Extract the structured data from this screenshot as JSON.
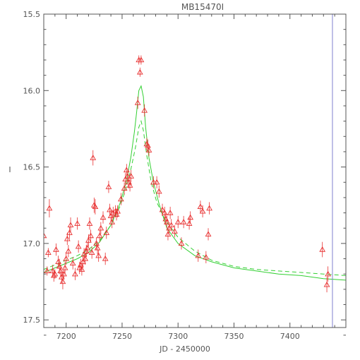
{
  "chart_data": {
    "type": "scatter",
    "title": "MB15470I",
    "xlabel": "JD - 2450000",
    "ylabel": "I",
    "xlim": [
      7180,
      7450
    ],
    "ylim": [
      17.55,
      15.5
    ],
    "y_inverted": true,
    "grid": false,
    "xticks": [
      7200,
      7250,
      7300,
      7350,
      7400
    ],
    "yticks": [
      15.5,
      16.0,
      16.5,
      17.0,
      17.5
    ],
    "ytick_labels": [
      "15.5",
      "16.0",
      "16.5",
      "17.0",
      "17.5"
    ],
    "marker_vertical_line_x": 7438,
    "colors": {
      "points": "#e83030",
      "model_solid": "#33d033",
      "model_dashed": "#33d033",
      "frame": "#555555",
      "marker_line": "#8080d0"
    },
    "series": [
      {
        "kind": "points",
        "marker": "triangle",
        "points": [
          {
            "x": 7180,
            "y": 16.95,
            "err": 0.04
          },
          {
            "x": 7183,
            "y": 17.18,
            "err": 0.03
          },
          {
            "x": 7184,
            "y": 17.06,
            "err": 0.03
          },
          {
            "x": 7185,
            "y": 16.77,
            "err": 0.06
          },
          {
            "x": 7188,
            "y": 17.18,
            "err": 0.04
          },
          {
            "x": 7189,
            "y": 17.21,
            "err": 0.04
          },
          {
            "x": 7190,
            "y": 17.2,
            "err": 0.03
          },
          {
            "x": 7191,
            "y": 17.04,
            "err": 0.04
          },
          {
            "x": 7193,
            "y": 17.12,
            "err": 0.04
          },
          {
            "x": 7194,
            "y": 17.15,
            "err": 0.05
          },
          {
            "x": 7195,
            "y": 17.18,
            "err": 0.04
          },
          {
            "x": 7196,
            "y": 17.22,
            "err": 0.04
          },
          {
            "x": 7197,
            "y": 17.25,
            "err": 0.05
          },
          {
            "x": 7198,
            "y": 17.2,
            "err": 0.03
          },
          {
            "x": 7199,
            "y": 17.16,
            "err": 0.04
          },
          {
            "x": 7200,
            "y": 17.1,
            "err": 0.04
          },
          {
            "x": 7201,
            "y": 16.97,
            "err": 0.04
          },
          {
            "x": 7202,
            "y": 17.05,
            "err": 0.04
          },
          {
            "x": 7203,
            "y": 16.93,
            "err": 0.04
          },
          {
            "x": 7204,
            "y": 16.88,
            "err": 0.05
          },
          {
            "x": 7206,
            "y": 17.13,
            "err": 0.04
          },
          {
            "x": 7208,
            "y": 17.2,
            "err": 0.04
          },
          {
            "x": 7210,
            "y": 16.87,
            "err": 0.04
          },
          {
            "x": 7211,
            "y": 17.02,
            "err": 0.04
          },
          {
            "x": 7212,
            "y": 17.16,
            "err": 0.04
          },
          {
            "x": 7213,
            "y": 17.14,
            "err": 0.04
          },
          {
            "x": 7214,
            "y": 17.17,
            "err": 0.04
          },
          {
            "x": 7215,
            "y": 17.12,
            "err": 0.04
          },
          {
            "x": 7216,
            "y": 17.07,
            "err": 0.04
          },
          {
            "x": 7217,
            "y": 17.1,
            "err": 0.04
          },
          {
            "x": 7218,
            "y": 17.05,
            "err": 0.04
          },
          {
            "x": 7219,
            "y": 17.03,
            "err": 0.04
          },
          {
            "x": 7220,
            "y": 16.98,
            "err": 0.04
          },
          {
            "x": 7221,
            "y": 16.87,
            "err": 0.04
          },
          {
            "x": 7222,
            "y": 16.95,
            "err": 0.04
          },
          {
            "x": 7223,
            "y": 17.06,
            "err": 0.04
          },
          {
            "x": 7224,
            "y": 16.44,
            "err": 0.05
          },
          {
            "x": 7225,
            "y": 16.75,
            "err": 0.05
          },
          {
            "x": 7226,
            "y": 16.76,
            "err": 0.05
          },
          {
            "x": 7227,
            "y": 17.0,
            "err": 0.04
          },
          {
            "x": 7228,
            "y": 17.03,
            "err": 0.04
          },
          {
            "x": 7229,
            "y": 17.08,
            "err": 0.04
          },
          {
            "x": 7230,
            "y": 16.95,
            "err": 0.04
          },
          {
            "x": 7231,
            "y": 16.9,
            "err": 0.04
          },
          {
            "x": 7233,
            "y": 16.83,
            "err": 0.04
          },
          {
            "x": 7235,
            "y": 17.1,
            "err": 0.04
          },
          {
            "x": 7236,
            "y": 16.93,
            "err": 0.04
          },
          {
            "x": 7238,
            "y": 16.63,
            "err": 0.04
          },
          {
            "x": 7239,
            "y": 16.78,
            "err": 0.04
          },
          {
            "x": 7240,
            "y": 16.82,
            "err": 0.04
          },
          {
            "x": 7241,
            "y": 16.86,
            "err": 0.04
          },
          {
            "x": 7242,
            "y": 16.8,
            "err": 0.04
          },
          {
            "x": 7244,
            "y": 16.79,
            "err": 0.04
          },
          {
            "x": 7245,
            "y": 16.81,
            "err": 0.04
          },
          {
            "x": 7246,
            "y": 16.79,
            "err": 0.04
          },
          {
            "x": 7249,
            "y": 16.71,
            "err": 0.04
          },
          {
            "x": 7252,
            "y": 16.64,
            "err": 0.04
          },
          {
            "x": 7253,
            "y": 16.58,
            "err": 0.04
          },
          {
            "x": 7254,
            "y": 16.52,
            "err": 0.04
          },
          {
            "x": 7255,
            "y": 16.56,
            "err": 0.04
          },
          {
            "x": 7256,
            "y": 16.6,
            "err": 0.04
          },
          {
            "x": 7257,
            "y": 16.62,
            "err": 0.04
          },
          {
            "x": 7258,
            "y": 16.56,
            "err": 0.04
          },
          {
            "x": 7264,
            "y": 16.08,
            "err": 0.04
          },
          {
            "x": 7265,
            "y": 15.8,
            "err": 0.03
          },
          {
            "x": 7266,
            "y": 15.88,
            "err": 0.03
          },
          {
            "x": 7267,
            "y": 15.8,
            "err": 0.03
          },
          {
            "x": 7270,
            "y": 16.13,
            "err": 0.04
          },
          {
            "x": 7272,
            "y": 16.35,
            "err": 0.04
          },
          {
            "x": 7273,
            "y": 16.36,
            "err": 0.04
          },
          {
            "x": 7274,
            "y": 16.39,
            "err": 0.04
          },
          {
            "x": 7278,
            "y": 16.6,
            "err": 0.04
          },
          {
            "x": 7281,
            "y": 16.6,
            "err": 0.04
          },
          {
            "x": 7283,
            "y": 16.66,
            "err": 0.04
          },
          {
            "x": 7286,
            "y": 16.78,
            "err": 0.04
          },
          {
            "x": 7288,
            "y": 16.8,
            "err": 0.04
          },
          {
            "x": 7289,
            "y": 16.84,
            "err": 0.04
          },
          {
            "x": 7290,
            "y": 16.86,
            "err": 0.04
          },
          {
            "x": 7291,
            "y": 16.94,
            "err": 0.04
          },
          {
            "x": 7292,
            "y": 16.9,
            "err": 0.04
          },
          {
            "x": 7293,
            "y": 16.8,
            "err": 0.04
          },
          {
            "x": 7294,
            "y": 16.88,
            "err": 0.04
          },
          {
            "x": 7297,
            "y": 16.92,
            "err": 0.04
          },
          {
            "x": 7300,
            "y": 16.86,
            "err": 0.04
          },
          {
            "x": 7303,
            "y": 17.0,
            "err": 0.04
          },
          {
            "x": 7305,
            "y": 16.86,
            "err": 0.04
          },
          {
            "x": 7310,
            "y": 16.87,
            "err": 0.04
          },
          {
            "x": 7311,
            "y": 16.83,
            "err": 0.04
          },
          {
            "x": 7318,
            "y": 17.08,
            "err": 0.04
          },
          {
            "x": 7320,
            "y": 16.76,
            "err": 0.04
          },
          {
            "x": 7322,
            "y": 16.79,
            "err": 0.04
          },
          {
            "x": 7325,
            "y": 17.09,
            "err": 0.04
          },
          {
            "x": 7327,
            "y": 16.94,
            "err": 0.04
          },
          {
            "x": 7328,
            "y": 16.77,
            "err": 0.04
          },
          {
            "x": 7429,
            "y": 17.04,
            "err": 0.05
          },
          {
            "x": 7433,
            "y": 17.27,
            "err": 0.05
          },
          {
            "x": 7434,
            "y": 17.2,
            "err": 0.05
          }
        ]
      },
      {
        "kind": "line",
        "style": "solid",
        "x": [
          7180,
          7190,
          7200,
          7210,
          7220,
          7230,
          7240,
          7248,
          7254,
          7258,
          7261,
          7263,
          7265,
          7267,
          7269,
          7271,
          7274,
          7278,
          7283,
          7290,
          7300,
          7315,
          7330,
          7350,
          7370,
          7390,
          7410,
          7430,
          7450
        ],
        "y": [
          17.19,
          17.16,
          17.13,
          17.1,
          17.06,
          16.99,
          16.88,
          16.74,
          16.59,
          16.43,
          16.27,
          16.14,
          16.0,
          15.97,
          16.04,
          16.24,
          16.44,
          16.6,
          16.74,
          16.9,
          17.0,
          17.08,
          17.12,
          17.16,
          17.18,
          17.2,
          17.21,
          17.23,
          17.24
        ]
      },
      {
        "kind": "line",
        "style": "dashed",
        "x": [
          7180,
          7190,
          7200,
          7210,
          7220,
          7230,
          7240,
          7248,
          7254,
          7258,
          7262,
          7265,
          7267,
          7269,
          7272,
          7276,
          7281,
          7288,
          7300,
          7315,
          7330,
          7350,
          7370,
          7390,
          7410,
          7430,
          7450
        ],
        "y": [
          17.17,
          17.14,
          17.11,
          17.08,
          17.04,
          16.98,
          16.88,
          16.76,
          16.63,
          16.51,
          16.37,
          16.24,
          16.2,
          16.26,
          16.42,
          16.6,
          16.73,
          16.84,
          16.96,
          17.05,
          17.11,
          17.15,
          17.17,
          17.18,
          17.19,
          17.2,
          17.21
        ]
      }
    ]
  }
}
